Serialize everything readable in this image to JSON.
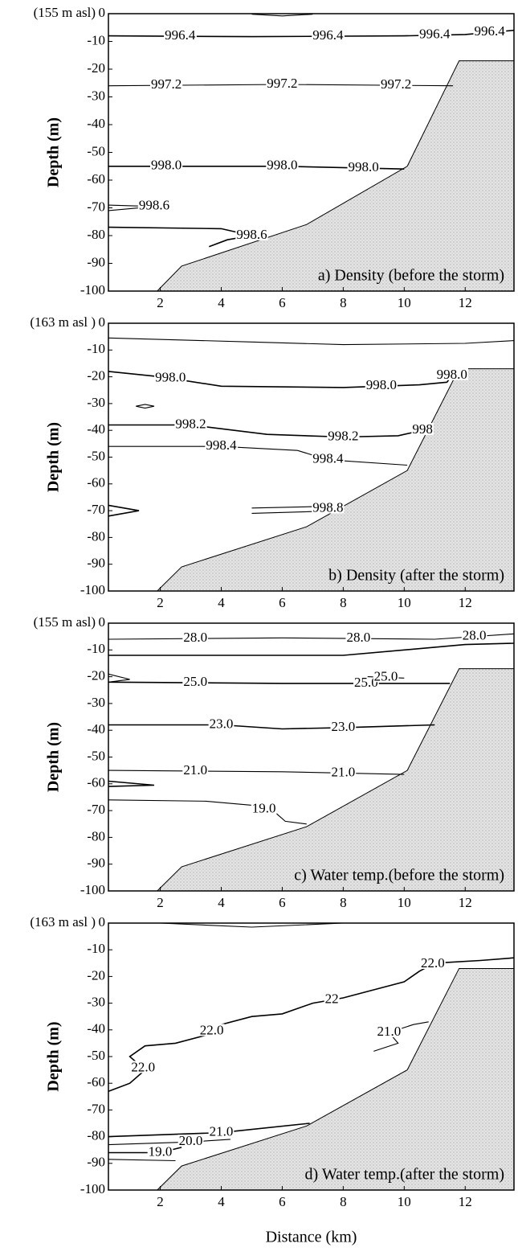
{
  "chart_data": [
    {
      "type": "contour",
      "title": "a) Density (before the storm)",
      "surface_label": "(155 m asl)",
      "ylabel": "Depth (m)",
      "xlim": [
        0.3,
        13.6
      ],
      "ylim": [
        -100,
        0
      ],
      "xticks": [
        2,
        4,
        6,
        8,
        10,
        12
      ],
      "yticks": [
        0,
        -10,
        -20,
        -30,
        -40,
        -50,
        -60,
        -70,
        -80,
        -90,
        -100
      ],
      "bottom": {
        "x": [
          1.9,
          2.7,
          6.8,
          10.1,
          11.8,
          13.6,
          13.6
        ],
        "y": [
          -100,
          -91,
          -76,
          -55,
          -17,
          -17,
          -100
        ]
      },
      "contours": [
        {
          "x": [
            5,
            6,
            7
          ],
          "y": [
            -0.2,
            -0.8,
            -0.2
          ]
        },
        {
          "labels": [
            "996.4",
            "996.4",
            "996.4",
            "996.4"
          ],
          "x": [
            0.3,
            5,
            10,
            12,
            13.6
          ],
          "y": [
            -8,
            -8.3,
            -8,
            -7.5,
            -6
          ]
        },
        {
          "labels": [
            "997.2",
            "997.2",
            "997.2"
          ],
          "x": [
            0.3,
            6,
            11.6
          ],
          "y": [
            -26,
            -25.5,
            -26
          ]
        },
        {
          "labels": [
            "998.0",
            "998.0",
            "998.0"
          ],
          "x": [
            0.3,
            6,
            10
          ],
          "y": [
            -55,
            -55,
            -56
          ]
        },
        {
          "labels": [
            "998.6"
          ],
          "x": [
            0.3,
            1.8,
            0.3
          ],
          "y": [
            -69,
            -69.5,
            -71
          ]
        },
        {
          "labels": [
            "998.6"
          ],
          "x": [
            0.3,
            4,
            5,
            4.2,
            3.6
          ],
          "y": [
            -77,
            -77.5,
            -80,
            -81.5,
            -84
          ]
        }
      ]
    },
    {
      "type": "contour",
      "title": "b) Density (after the storm)",
      "surface_label": "(163 m asl )",
      "ylabel": "Depth (m)",
      "xlim": [
        0.3,
        13.6
      ],
      "ylim": [
        -100,
        0
      ],
      "xticks": [
        2,
        4,
        6,
        8,
        10,
        12
      ],
      "yticks": [
        0,
        -10,
        -20,
        -30,
        -40,
        -50,
        -60,
        -70,
        -80,
        -90,
        -100
      ],
      "bottom": {
        "x": [
          1.9,
          2.7,
          6.8,
          10.1,
          11.8,
          13.6,
          13.6
        ],
        "y": [
          -100,
          -91,
          -76,
          -55,
          -17,
          -17,
          -100
        ]
      },
      "contours": [
        {
          "x": [
            0.3,
            5,
            8,
            12,
            13.6
          ],
          "y": [
            -5.5,
            -7,
            -8,
            -7.5,
            -6.5
          ]
        },
        {
          "labels": [
            "998.0",
            "998.0",
            "998.0"
          ],
          "x": [
            0.3,
            2,
            4,
            8,
            10.5,
            11.4,
            11.6,
            11.9
          ],
          "y": [
            -18,
            -20,
            -23.5,
            -24,
            -23,
            -22,
            -19,
            -18
          ]
        },
        {
          "x": [
            1.2,
            1.5,
            1.8,
            1.5,
            1.2
          ],
          "y": [
            -31,
            -30.3,
            -31,
            -31.7,
            -31
          ]
        },
        {
          "labels": [
            "998.2",
            "998.2",
            "998"
          ],
          "x": [
            0.3,
            3,
            5.5,
            8,
            9.8,
            10.6,
            10.9
          ],
          "y": [
            -38,
            -38,
            -41.5,
            -42.5,
            -42,
            -40,
            -40
          ]
        },
        {
          "labels": [
            "998.4",
            "998.4"
          ],
          "x": [
            0.3,
            4,
            6.5,
            7.5,
            10.1
          ],
          "y": [
            -46,
            -46,
            -47.5,
            -51,
            -53
          ]
        },
        {
          "x": [
            0.3,
            1.3,
            0.3
          ],
          "y": [
            -68,
            -70,
            -72
          ]
        },
        {
          "labels": [
            "998.8"
          ],
          "x": [
            5,
            7,
            8,
            5
          ],
          "y": [
            -69,
            -68.5,
            -70,
            -71
          ]
        }
      ]
    },
    {
      "type": "contour",
      "title": "c) Water temp.(before the storm)",
      "surface_label": "(155 m asl)",
      "ylabel": "Depth (m)",
      "xlim": [
        0.3,
        13.6
      ],
      "ylim": [
        -100,
        0
      ],
      "xticks": [
        2,
        4,
        6,
        8,
        10,
        12
      ],
      "yticks": [
        0,
        -10,
        -20,
        -30,
        -40,
        -50,
        -60,
        -70,
        -80,
        -90,
        -100
      ],
      "bottom": {
        "x": [
          1.9,
          2.7,
          6.8,
          10.1,
          11.8,
          13.6,
          13.6
        ],
        "y": [
          -100,
          -91,
          -76,
          -55,
          -17,
          -17,
          -100
        ]
      },
      "contours": [
        {
          "labels": [
            "28.0",
            "28.0",
            "28.0"
          ],
          "x": [
            0.3,
            6,
            11,
            13.6
          ],
          "y": [
            -6,
            -5.5,
            -6,
            -4
          ]
        },
        {
          "x": [
            0.3,
            8,
            12,
            13.6
          ],
          "y": [
            -12,
            -12,
            -8,
            -7.5
          ]
        },
        {
          "x": [
            0.3,
            1,
            0.3
          ],
          "y": [
            -19,
            -21,
            -22
          ]
        },
        {
          "labels": [
            "25.0",
            "25.0"
          ],
          "x": [
            0.3,
            6,
            11.5
          ],
          "y": [
            -22,
            -22.5,
            -22.5
          ]
        },
        {
          "labels": [
            "25.0"
          ],
          "x": [
            8.8,
            10
          ],
          "y": [
            -20,
            -20.5
          ]
        },
        {
          "labels": [
            "23.0",
            "23.0"
          ],
          "x": [
            0.3,
            4,
            6,
            8,
            11
          ],
          "y": [
            -38,
            -38,
            -39.5,
            -39,
            -38
          ]
        },
        {
          "labels": [
            "21.0",
            "21.0"
          ],
          "x": [
            0.3,
            6,
            10
          ],
          "y": [
            -55,
            -55.5,
            -56.5
          ]
        },
        {
          "x": [
            0.3,
            1.8,
            0.3
          ],
          "y": [
            -59,
            -60.5,
            -61
          ]
        },
        {
          "labels": [
            "19.0"
          ],
          "x": [
            0.3,
            3.5,
            5,
            5.8,
            6.1,
            6.8
          ],
          "y": [
            -66,
            -66.5,
            -68,
            -71,
            -74,
            -75
          ]
        }
      ]
    },
    {
      "type": "contour",
      "title": "d) Water temp.(after the storm)",
      "surface_label": "(163 m asl )",
      "ylabel": "Depth (m)",
      "xlabel": "Distance (km)",
      "xlim": [
        0.3,
        13.6
      ],
      "ylim": [
        -100,
        0
      ],
      "xticks": [
        2,
        4,
        6,
        8,
        10,
        12
      ],
      "yticks": [
        0,
        -10,
        -20,
        -30,
        -40,
        -50,
        -60,
        -70,
        -80,
        -90,
        -100
      ],
      "bottom": {
        "x": [
          1.9,
          2.7,
          6.8,
          10.1,
          11.8,
          13.6,
          13.6
        ],
        "y": [
          -100,
          -91,
          -76,
          -55,
          -17,
          -17,
          -100
        ]
      },
      "contours": [
        {
          "x": [
            2,
            5,
            8
          ],
          "y": [
            0,
            -1.5,
            0
          ]
        },
        {
          "labels": [
            "22.0",
            "22.0",
            "22",
            "22.0"
          ],
          "x": [
            0.3,
            1,
            1.5,
            1,
            1.5,
            2.5,
            3.5,
            4,
            5,
            6,
            7,
            8,
            9,
            10,
            10.5,
            11,
            12.5,
            13.6
          ],
          "y": [
            -63,
            -60,
            -55,
            -50,
            -46,
            -45,
            -42,
            -38,
            -35,
            -34,
            -30,
            -28,
            -25,
            -22,
            -18,
            -15,
            -14,
            -13
          ]
        },
        {
          "labels": [
            "21.0"
          ],
          "x": [
            9,
            9.8,
            9.5,
            10.3,
            10.8
          ],
          "y": [
            -48,
            -45,
            -41,
            -38,
            -37
          ]
        },
        {
          "labels": [
            "21.0"
          ],
          "x": [
            0.3,
            4,
            6.9
          ],
          "y": [
            -80,
            -78.5,
            -75
          ]
        },
        {
          "labels": [
            "20.0"
          ],
          "x": [
            0.3,
            3,
            4.3
          ],
          "y": [
            -83,
            -82,
            -81
          ]
        },
        {
          "labels": [
            "19.0"
          ],
          "x": [
            0.3,
            2,
            2.7
          ],
          "y": [
            -86,
            -86,
            -84
          ]
        },
        {
          "x": [
            0.3,
            2.5
          ],
          "y": [
            -88.5,
            -89
          ]
        }
      ]
    }
  ]
}
